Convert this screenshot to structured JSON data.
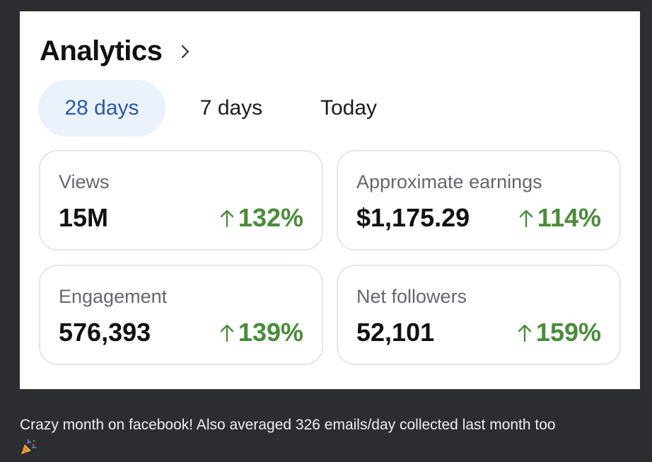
{
  "header": {
    "title": "Analytics"
  },
  "tabs": [
    {
      "label": "28 days",
      "active": true
    },
    {
      "label": "7 days",
      "active": false
    },
    {
      "label": "Today",
      "active": false
    }
  ],
  "metrics": [
    {
      "label": "Views",
      "value": "15M",
      "change": "132%"
    },
    {
      "label": "Approximate earnings",
      "value": "$1,175.29",
      "change": "114%"
    },
    {
      "label": "Engagement",
      "value": "576,393",
      "change": "139%"
    },
    {
      "label": "Net followers",
      "value": "52,101",
      "change": "159%"
    }
  ],
  "caption": {
    "text": "Crazy month on facebook! Also averaged 326 emails/day collected last month too",
    "emoji": "party-popper-icon"
  },
  "colors": {
    "accent": "#2a5aa5",
    "tab_active_bg": "#eaf2fc",
    "positive": "#4b8b3b",
    "label": "#65676b",
    "background": "#2b2d31"
  }
}
